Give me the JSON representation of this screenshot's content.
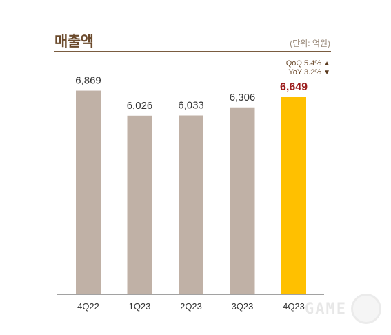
{
  "header": {
    "title": "매출액",
    "unit": "(단위: 억원)"
  },
  "change": {
    "qoq_label": "QoQ 5.4%",
    "yoy_label": "YoY 3.2%"
  },
  "watermark": {
    "text": "GAME"
  },
  "colors": {
    "bar": "#c0b1a6",
    "highlight_bar": "#ffc000",
    "highlight_label": "#9b1c1c",
    "label": "#333333",
    "axis": "#444444"
  },
  "chart_data": {
    "type": "bar",
    "categories": [
      "4Q22",
      "1Q23",
      "2Q23",
      "3Q23",
      "4Q23"
    ],
    "values": [
      6869,
      6026,
      6033,
      6306,
      6649
    ],
    "value_labels": [
      "6,869",
      "6,026",
      "6,033",
      "6,306",
      "6,649"
    ],
    "highlight_index": 4,
    "title": "매출액",
    "xlabel": "",
    "ylabel": "",
    "ylim": [
      0,
      7300
    ],
    "grid": false,
    "legend": "none"
  }
}
